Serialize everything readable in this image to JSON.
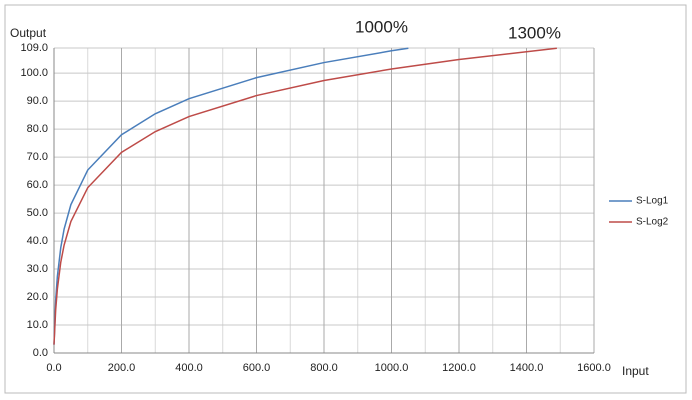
{
  "chart_data": {
    "type": "line",
    "y_label": "Output",
    "x_label": "Input",
    "annotations": [
      "1000%",
      "1300%"
    ],
    "xlim": [
      0,
      1600
    ],
    "ylim": [
      0,
      109
    ],
    "xticks": [
      {
        "value": 0,
        "label": "0.0"
      },
      {
        "value": 200,
        "label": "200.0"
      },
      {
        "value": 400,
        "label": "400.0"
      },
      {
        "value": 600,
        "label": "600.0"
      },
      {
        "value": 800,
        "label": "800.0"
      },
      {
        "value": 1000,
        "label": "1000.0"
      },
      {
        "value": 1200,
        "label": "1200.0"
      },
      {
        "value": 1400,
        "label": "1400.0"
      },
      {
        "value": 1600,
        "label": "1600.0"
      }
    ],
    "x_minor_gridlines": [
      100,
      300,
      500,
      700,
      900,
      1100,
      1300,
      1500
    ],
    "yticks": [
      {
        "value": 0,
        "label": "0.0"
      },
      {
        "value": 10,
        "label": "10.0"
      },
      {
        "value": 20,
        "label": "20.0"
      },
      {
        "value": 30,
        "label": "30.0"
      },
      {
        "value": 40,
        "label": "40.0"
      },
      {
        "value": 50,
        "label": "50.0"
      },
      {
        "value": 60,
        "label": "60.0"
      },
      {
        "value": 70,
        "label": "70.0"
      },
      {
        "value": 80,
        "label": "80.0"
      },
      {
        "value": 90,
        "label": "90.0"
      },
      {
        "value": 100,
        "label": "100.0"
      },
      {
        "value": 109,
        "label": "109.0"
      }
    ],
    "grid": true,
    "legend": "right",
    "series": [
      {
        "name": "S-Log1",
        "color": "#4a7ebb",
        "x": [
          0,
          5,
          10,
          20,
          30,
          50,
          100,
          200,
          300,
          400,
          600,
          800,
          1000,
          1050
        ],
        "values": [
          3.0,
          18.9,
          27.4,
          37.6,
          44.3,
          53.0,
          65.4,
          78.0,
          85.5,
          90.9,
          98.4,
          103.8,
          108.0,
          108.9
        ]
      },
      {
        "name": "S-Log2",
        "color": "#be4b48",
        "x": [
          0,
          5,
          10,
          20,
          30,
          50,
          100,
          200,
          300,
          400,
          600,
          800,
          1000,
          1200,
          1490
        ],
        "values": [
          3.0,
          15.5,
          22.9,
          32.4,
          38.6,
          47.0,
          59.1,
          71.7,
          79.1,
          84.5,
          92.0,
          97.4,
          101.5,
          104.9,
          108.9
        ]
      }
    ]
  }
}
